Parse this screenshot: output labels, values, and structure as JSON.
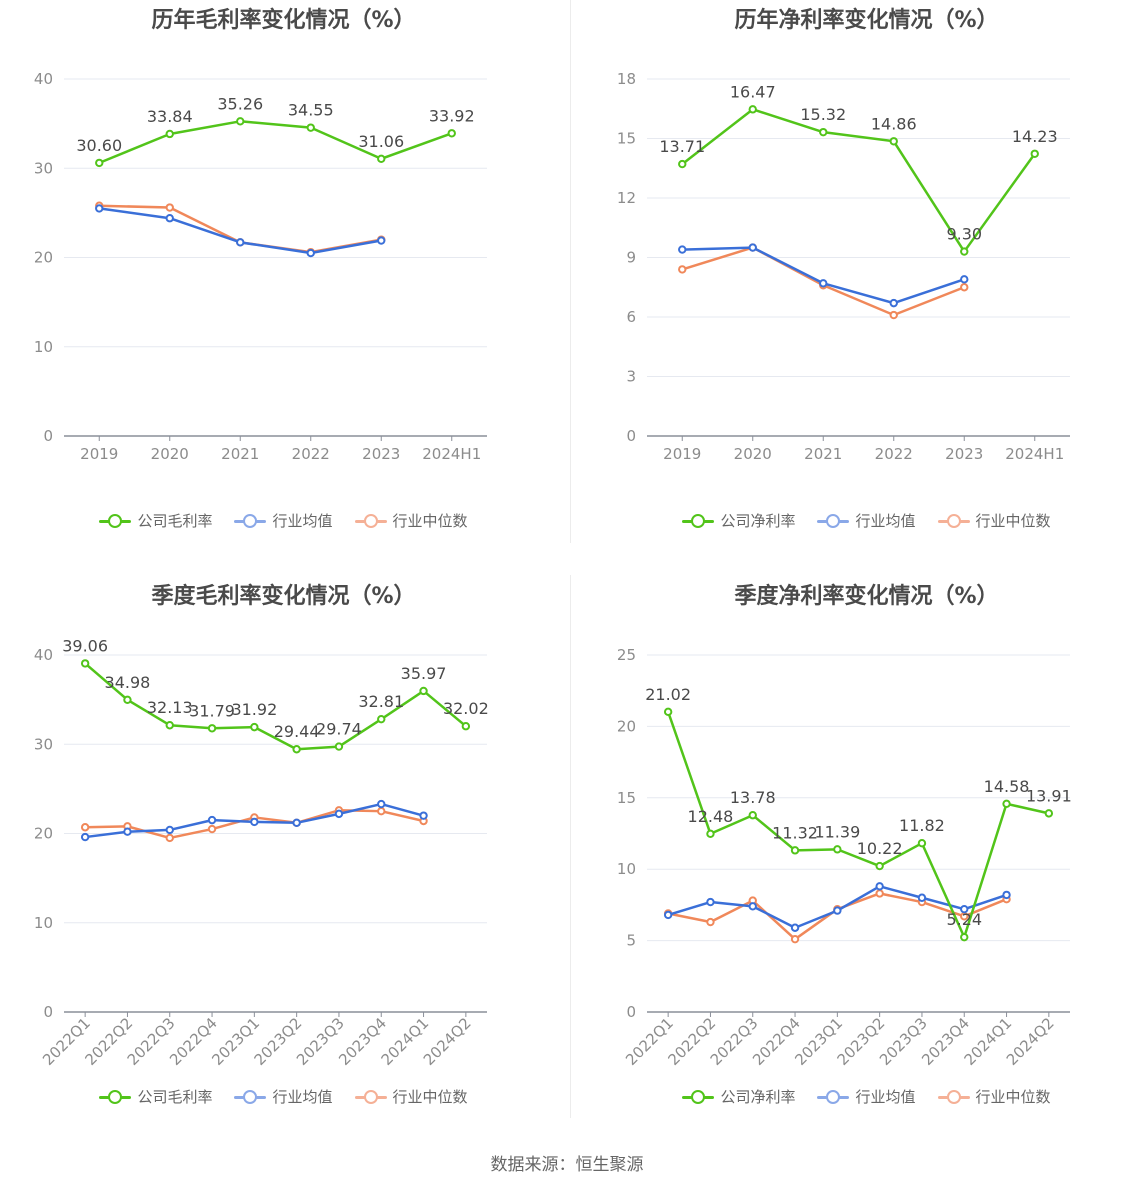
{
  "source_text": "数据来源：恒生聚源",
  "colors": {
    "company": "#52c41a",
    "avg": "#3a6fd8",
    "median": "#f0885a",
    "legend_avg": "#8aa8e8",
    "legend_median": "#f5b096"
  },
  "chart_data": [
    {
      "type": "line",
      "title": "历年毛利率变化情况（%）",
      "categories": [
        "2019",
        "2020",
        "2021",
        "2022",
        "2023",
        "2024H1"
      ],
      "ylim": [
        0,
        40
      ],
      "yticks": [
        "0",
        "10",
        "20",
        "30",
        "40"
      ],
      "rotate_x": false,
      "series": [
        {
          "name": "公司毛利率",
          "role": "company",
          "values": [
            30.6,
            33.84,
            35.26,
            34.55,
            31.06,
            33.92
          ],
          "labels": [
            "30.60",
            "33.84",
            "35.26",
            "34.55",
            "31.06",
            "33.92"
          ]
        },
        {
          "name": "行业均值",
          "role": "avg",
          "values": [
            25.5,
            24.4,
            21.7,
            20.5,
            21.9,
            null
          ]
        },
        {
          "name": "行业中位数",
          "role": "median",
          "values": [
            25.8,
            25.6,
            21.7,
            20.6,
            22.0,
            null
          ]
        }
      ]
    },
    {
      "type": "line",
      "title": "历年净利率变化情况（%）",
      "categories": [
        "2019",
        "2020",
        "2021",
        "2022",
        "2023",
        "2024H1"
      ],
      "ylim": [
        0,
        18
      ],
      "yticks": [
        "0",
        "3",
        "6",
        "9",
        "12",
        "15",
        "18"
      ],
      "rotate_x": false,
      "series": [
        {
          "name": "公司净利率",
          "role": "company",
          "values": [
            13.71,
            16.47,
            15.32,
            14.86,
            9.3,
            14.23
          ],
          "labels": [
            "13.71",
            "16.47",
            "15.32",
            "14.86",
            "9.30",
            "14.23"
          ]
        },
        {
          "name": "行业均值",
          "role": "avg",
          "values": [
            9.4,
            9.5,
            7.7,
            6.7,
            7.9,
            null
          ]
        },
        {
          "name": "行业中位数",
          "role": "median",
          "values": [
            8.4,
            9.5,
            7.6,
            6.1,
            7.5,
            null
          ]
        }
      ]
    },
    {
      "type": "line",
      "title": "季度毛利率变化情况（%）",
      "categories": [
        "2022Q1",
        "2022Q2",
        "2022Q3",
        "2022Q4",
        "2023Q1",
        "2023Q2",
        "2023Q3",
        "2023Q4",
        "2024Q1",
        "2024Q2"
      ],
      "ylim": [
        0,
        40
      ],
      "yticks": [
        "0",
        "10",
        "20",
        "30",
        "40"
      ],
      "rotate_x": true,
      "series": [
        {
          "name": "公司毛利率",
          "role": "company",
          "values": [
            39.06,
            34.98,
            32.13,
            31.79,
            31.92,
            29.44,
            29.74,
            32.81,
            35.97,
            32.02
          ],
          "labels": [
            "39.06",
            "34.98",
            "32.13",
            "31.79",
            "31.92",
            "29.44",
            "29.74",
            "32.81",
            "35.97",
            "32.02"
          ]
        },
        {
          "name": "行业均值",
          "role": "avg",
          "values": [
            19.6,
            20.2,
            20.4,
            21.5,
            21.3,
            21.2,
            22.2,
            23.3,
            22.0,
            null
          ]
        },
        {
          "name": "行业中位数",
          "role": "median",
          "values": [
            20.7,
            20.8,
            19.5,
            20.5,
            21.8,
            21.2,
            22.6,
            22.5,
            21.4,
            null
          ]
        }
      ]
    },
    {
      "type": "line",
      "title": "季度净利率变化情况（%）",
      "categories": [
        "2022Q1",
        "2022Q2",
        "2022Q3",
        "2022Q4",
        "2023Q1",
        "2023Q2",
        "2023Q3",
        "2023Q4",
        "2024Q1",
        "2024Q2"
      ],
      "ylim": [
        0,
        25
      ],
      "yticks": [
        "0",
        "5",
        "10",
        "15",
        "20",
        "25"
      ],
      "rotate_x": true,
      "series": [
        {
          "name": "公司净利率",
          "role": "company",
          "values": [
            21.02,
            12.48,
            13.78,
            11.32,
            11.39,
            10.22,
            11.82,
            5.24,
            14.58,
            13.91
          ],
          "labels": [
            "21.02",
            "12.48",
            "13.78",
            "11.32",
            "11.39",
            "10.22",
            "11.82",
            "5.24",
            "14.58",
            "13.91"
          ]
        },
        {
          "name": "行业均值",
          "role": "avg",
          "values": [
            6.8,
            7.7,
            7.4,
            5.9,
            7.1,
            8.8,
            8.0,
            7.2,
            8.2,
            null
          ]
        },
        {
          "name": "行业中位数",
          "role": "median",
          "values": [
            6.9,
            6.3,
            7.8,
            5.1,
            7.2,
            8.3,
            7.7,
            6.7,
            7.9,
            null
          ]
        }
      ]
    }
  ]
}
